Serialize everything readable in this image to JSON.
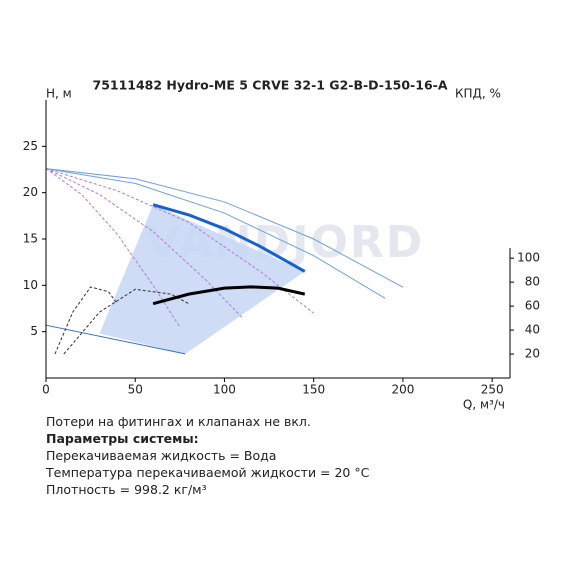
{
  "chart_data": {
    "type": "line",
    "title": "75111482 Hydro-ME 5 CRVE 32-1 G2-B-D-150-16-A",
    "ylabel": "H, м",
    "y2label": "КПД, %",
    "xlabel": "Q, м³/ч",
    "watermark": "VANDJORD",
    "xlim": [
      0,
      260
    ],
    "xticks": [
      0,
      50,
      100,
      150,
      200,
      250
    ],
    "ylim": [
      0,
      30
    ],
    "yticks": [
      5,
      10,
      15,
      20,
      25
    ],
    "y2lim": [
      0,
      232
    ],
    "y2ticks": [
      20,
      40,
      60,
      80,
      100
    ],
    "series": [
      {
        "color": "#c5d6f5",
        "fill": true,
        "x": [
          30,
          60,
          145,
          78
        ],
        "values": [
          4.8,
          18.7,
          11.5,
          2.6
        ]
      },
      {
        "color": "#6fa0e8",
        "width": 1,
        "x": [
          0,
          50,
          100,
          150,
          200
        ],
        "values": [
          22.6,
          21.5,
          19,
          15,
          9.8
        ]
      },
      {
        "color": "#6fa0e8",
        "width": 1,
        "x": [
          0,
          50,
          100,
          150,
          190
        ],
        "values": [
          22.6,
          21,
          17.8,
          13.2,
          8.6
        ]
      },
      {
        "color": "#b07ad8",
        "width": 1,
        "dash": true,
        "x": [
          0,
          40,
          80,
          120,
          150
        ],
        "values": [
          22.6,
          20.2,
          16.8,
          11.5,
          7
        ]
      },
      {
        "color": "#b07ad8",
        "width": 1,
        "dash": true,
        "x": [
          0,
          30,
          60,
          90,
          110
        ],
        "values": [
          22.6,
          19.8,
          15.8,
          10.5,
          6.5
        ]
      },
      {
        "color": "#b07ad8",
        "width": 1,
        "dash": true,
        "x": [
          0,
          20,
          40,
          60,
          75
        ],
        "values": [
          22.6,
          19.8,
          15.5,
          10,
          5.5
        ]
      },
      {
        "color": "#2f6fd0",
        "width": 1,
        "x": [
          0,
          78
        ],
        "values": [
          5.7,
          2.6
        ]
      },
      {
        "color": "#1560d4",
        "width": 3,
        "x": [
          60,
          80,
          100,
          120,
          145
        ],
        "values": [
          18.7,
          17.6,
          16.1,
          14.2,
          11.5
        ]
      },
      {
        "color": "#333333",
        "width": 1,
        "dash": true,
        "axis": "y2",
        "x": [
          5,
          15,
          25,
          35,
          40
        ],
        "values": [
          20,
          55,
          76,
          72,
          62
        ]
      },
      {
        "color": "#333333",
        "width": 1,
        "dash": true,
        "axis": "y2",
        "x": [
          10,
          30,
          50,
          70,
          80
        ],
        "values": [
          20,
          55,
          74,
          70,
          62
        ]
      },
      {
        "color": "#000000",
        "width": 3,
        "axis": "y2",
        "x": [
          60,
          80,
          100,
          115,
          130,
          145
        ],
        "values": [
          62,
          70,
          75,
          76,
          75,
          70
        ]
      }
    ]
  },
  "notes": [
    "Потери на фитингах и клапанах не вкл.",
    "Параметры системы:",
    "Перекачиваемая жидкость = Вода",
    "Температура перекачиваемой жидкости = 20 °C",
    "Плотность = 998.2 кг/м³"
  ]
}
